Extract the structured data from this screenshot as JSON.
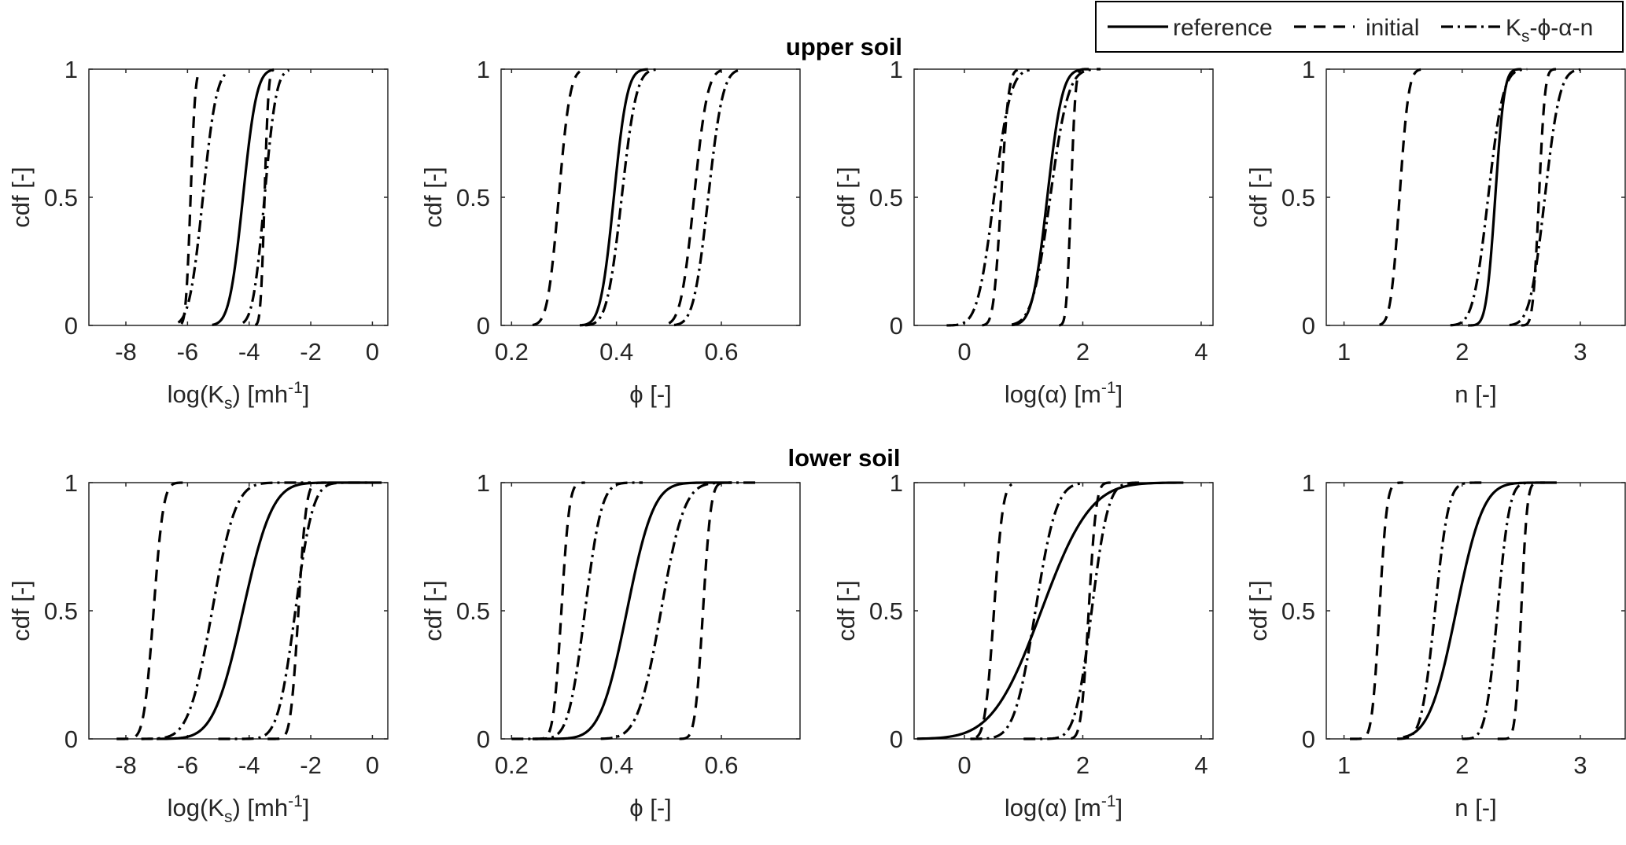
{
  "legend": {
    "entries": [
      {
        "label": "reference",
        "style": "solid"
      },
      {
        "label": "initial",
        "style": "dashed"
      },
      {
        "label_main": "K",
        "label_sub": "s",
        "label_rest": "-ϕ-α-n",
        "style": "dashdot"
      }
    ]
  },
  "rows": [
    {
      "title": "upper soil"
    },
    {
      "title": "lower soil"
    }
  ],
  "chart_data": [
    {
      "type": "line",
      "row": "upper soil",
      "xlabel": {
        "pre": "log(K",
        "sub": "s",
        "post": ") [mh",
        "sup": "-1",
        "end": "]"
      },
      "ylabel": "cdf [-]",
      "xlim": [
        -9.2,
        0.5
      ],
      "ylim": [
        0,
        1
      ],
      "xticks": [
        -8,
        -6,
        -4,
        -2,
        0
      ],
      "xtick_labels": [
        "-8",
        "-6",
        "-4",
        "-2",
        "0"
      ],
      "yticks": [
        0,
        0.5,
        1
      ],
      "ytick_labels": [
        "0",
        "0.5",
        "1"
      ],
      "series": [
        {
          "name": "reference",
          "style": "solid",
          "cdf_mean": -4.2,
          "cdf_sd": 0.35,
          "x_range": [
            -5.2,
            -3.2
          ]
        },
        {
          "name": "initial",
          "style": "dashed",
          "cdf_mean": -5.9,
          "cdf_sd": 0.12,
          "x_range": [
            -6.2,
            -5.6
          ]
        },
        {
          "name": "initial",
          "style": "dashed",
          "cdf_mean": -3.5,
          "cdf_sd": 0.1,
          "x_range": [
            -3.8,
            -3.2
          ]
        },
        {
          "name": "K-phi-alpha-n",
          "style": "dashdot",
          "cdf_mean": -5.5,
          "cdf_sd": 0.35,
          "x_range": [
            -6.3,
            -4.7
          ]
        },
        {
          "name": "K-phi-alpha-n",
          "style": "dashdot",
          "cdf_mean": -3.5,
          "cdf_sd": 0.3,
          "x_range": [
            -4.2,
            -2.7
          ]
        }
      ]
    },
    {
      "type": "line",
      "row": "upper soil",
      "xlabel": {
        "pre": "ϕ [-]"
      },
      "ylabel": "cdf [-]",
      "xlim": [
        0.18,
        0.75
      ],
      "ylim": [
        0,
        1
      ],
      "xticks": [
        0.2,
        0.4,
        0.6
      ],
      "xtick_labels": [
        "0.2",
        "0.4",
        "0.6"
      ],
      "yticks": [
        0,
        0.5,
        1
      ],
      "ytick_labels": [
        "0",
        "0.5",
        "1"
      ],
      "series": [
        {
          "name": "reference",
          "style": "solid",
          "cdf_mean": 0.395,
          "cdf_sd": 0.02,
          "x_range": [
            0.33,
            0.46
          ]
        },
        {
          "name": "initial",
          "style": "dashed",
          "cdf_mean": 0.29,
          "cdf_sd": 0.017,
          "x_range": [
            0.24,
            0.33
          ]
        },
        {
          "name": "initial",
          "style": "dashed",
          "cdf_mean": 0.548,
          "cdf_sd": 0.02,
          "x_range": [
            0.5,
            0.6
          ]
        },
        {
          "name": "K-phi-alpha-n",
          "style": "dashdot",
          "cdf_mean": 0.41,
          "cdf_sd": 0.022,
          "x_range": [
            0.34,
            0.48
          ]
        },
        {
          "name": "K-phi-alpha-n",
          "style": "dashdot",
          "cdf_mean": 0.575,
          "cdf_sd": 0.022,
          "x_range": [
            0.51,
            0.64
          ]
        }
      ]
    },
    {
      "type": "line",
      "row": "upper soil",
      "xlabel": {
        "pre": "log(α) [m",
        "sup": "-1",
        "end": "]"
      },
      "ylabel": "cdf [-]",
      "xlim": [
        -0.85,
        4.2
      ],
      "ylim": [
        0,
        1
      ],
      "xticks": [
        0,
        2,
        4
      ],
      "xtick_labels": [
        "0",
        "2",
        "4"
      ],
      "yticks": [
        0,
        0.5,
        1
      ],
      "ytick_labels": [
        "0",
        "0.5",
        "1"
      ],
      "series": [
        {
          "name": "reference",
          "style": "solid",
          "cdf_mean": 1.4,
          "cdf_sd": 0.2,
          "x_range": [
            0.8,
            2.0
          ]
        },
        {
          "name": "initial",
          "style": "dashed",
          "cdf_mean": 0.62,
          "cdf_sd": 0.1,
          "x_range": [
            0.3,
            0.9
          ]
        },
        {
          "name": "initial",
          "style": "dashed",
          "cdf_mean": 1.8,
          "cdf_sd": 0.06,
          "x_range": [
            1.6,
            2.3
          ]
        },
        {
          "name": "K-phi-alpha-n",
          "style": "dashdot",
          "cdf_mean": 0.5,
          "cdf_sd": 0.22,
          "x_range": [
            -0.3,
            1.1
          ]
        },
        {
          "name": "K-phi-alpha-n",
          "style": "dashdot",
          "cdf_mean": 1.45,
          "cdf_sd": 0.24,
          "x_range": [
            0.8,
            2.2
          ]
        }
      ]
    },
    {
      "type": "line",
      "row": "upper soil",
      "xlabel": {
        "pre": "n [-]"
      },
      "ylabel": "cdf [-]",
      "xlim": [
        0.85,
        3.38
      ],
      "ylim": [
        0,
        1
      ],
      "xticks": [
        1,
        2,
        3
      ],
      "xtick_labels": [
        "1",
        "2",
        "3"
      ],
      "yticks": [
        0,
        0.5,
        1
      ],
      "ytick_labels": [
        "0",
        "0.5",
        "1"
      ],
      "series": [
        {
          "name": "reference",
          "style": "solid",
          "cdf_mean": 2.28,
          "cdf_sd": 0.06,
          "x_range": [
            2.05,
            2.5
          ]
        },
        {
          "name": "initial",
          "style": "dashed",
          "cdf_mean": 1.47,
          "cdf_sd": 0.06,
          "x_range": [
            1.3,
            1.65
          ]
        },
        {
          "name": "initial",
          "style": "dashed",
          "cdf_mean": 2.65,
          "cdf_sd": 0.04,
          "x_range": [
            2.5,
            2.85
          ]
        },
        {
          "name": "K-phi-alpha-n",
          "style": "dashdot",
          "cdf_mean": 2.22,
          "cdf_sd": 0.1,
          "x_range": [
            1.9,
            2.55
          ]
        },
        {
          "name": "K-phi-alpha-n",
          "style": "dashdot",
          "cdf_mean": 2.7,
          "cdf_sd": 0.1,
          "x_range": [
            2.4,
            3.0
          ]
        }
      ]
    },
    {
      "type": "line",
      "row": "lower soil",
      "xlabel": {
        "pre": "log(K",
        "sub": "s",
        "post": ") [mh",
        "sup": "-1",
        "end": "]"
      },
      "ylabel": "cdf [-]",
      "xlim": [
        -9.2,
        0.5
      ],
      "ylim": [
        0,
        1
      ],
      "xticks": [
        -8,
        -6,
        -4,
        -2,
        0
      ],
      "xtick_labels": [
        "-8",
        "-6",
        "-4",
        "-2",
        "0"
      ],
      "yticks": [
        0,
        0.5,
        1
      ],
      "ytick_labels": [
        "0",
        "0.5",
        "1"
      ],
      "series": [
        {
          "name": "reference",
          "style": "solid",
          "cdf_mean": -4.2,
          "cdf_sd": 0.75,
          "x_range": [
            -7.0,
            0.0
          ]
        },
        {
          "name": "initial",
          "style": "dashed",
          "cdf_mean": -7.1,
          "cdf_sd": 0.25,
          "x_range": [
            -8.3,
            -6.0
          ]
        },
        {
          "name": "initial",
          "style": "dashed",
          "cdf_mean": -2.4,
          "cdf_sd": 0.2,
          "x_range": [
            -3.4,
            -1.5
          ]
        },
        {
          "name": "K-phi-alpha-n",
          "style": "dashdot",
          "cdf_mean": -5.2,
          "cdf_sd": 0.6,
          "x_range": [
            -7.5,
            -2.0
          ]
        },
        {
          "name": "K-phi-alpha-n",
          "style": "dashdot",
          "cdf_mean": -2.5,
          "cdf_sd": 0.45,
          "x_range": [
            -5.0,
            0.3
          ]
        }
      ]
    },
    {
      "type": "line",
      "row": "lower soil",
      "xlabel": {
        "pre": "ϕ [-]"
      },
      "ylabel": "cdf [-]",
      "xlim": [
        0.18,
        0.75
      ],
      "ylim": [
        0,
        1
      ],
      "xticks": [
        0.2,
        0.4,
        0.6
      ],
      "xtick_labels": [
        "0.2",
        "0.4",
        "0.6"
      ],
      "yticks": [
        0,
        0.5,
        1
      ],
      "ytick_labels": [
        "0",
        "0.5",
        "1"
      ],
      "series": [
        {
          "name": "reference",
          "style": "solid",
          "cdf_mean": 0.42,
          "cdf_sd": 0.04,
          "x_range": [
            0.24,
            0.62
          ]
        },
        {
          "name": "initial",
          "style": "dashed",
          "cdf_mean": 0.295,
          "cdf_sd": 0.012,
          "x_range": [
            0.24,
            0.34
          ]
        },
        {
          "name": "initial",
          "style": "dashed",
          "cdf_mean": 0.565,
          "cdf_sd": 0.012,
          "x_range": [
            0.52,
            0.62
          ]
        },
        {
          "name": "K-phi-alpha-n",
          "style": "dashdot",
          "cdf_mean": 0.34,
          "cdf_sd": 0.025,
          "x_range": [
            0.2,
            0.45
          ]
        },
        {
          "name": "K-phi-alpha-n",
          "style": "dashdot",
          "cdf_mean": 0.485,
          "cdf_sd": 0.035,
          "x_range": [
            0.37,
            0.67
          ]
        }
      ]
    },
    {
      "type": "line",
      "row": "lower soil",
      "xlabel": {
        "pre": "log(α) [m",
        "sup": "-1",
        "end": "]"
      },
      "ylabel": "cdf [-]",
      "xlim": [
        -0.85,
        4.2
      ],
      "ylim": [
        0,
        1
      ],
      "xticks": [
        0,
        2,
        4
      ],
      "xtick_labels": [
        "0",
        "2",
        "4"
      ],
      "yticks": [
        0,
        0.5,
        1
      ],
      "ytick_labels": [
        "0",
        "0.5",
        "1"
      ],
      "series": [
        {
          "name": "reference",
          "style": "solid",
          "cdf_mean": 1.3,
          "cdf_sd": 0.65,
          "x_range": [
            -0.8,
            3.7
          ]
        },
        {
          "name": "initial",
          "style": "dashed",
          "cdf_mean": 0.5,
          "cdf_sd": 0.12,
          "x_range": [
            0.2,
            0.8
          ]
        },
        {
          "name": "initial",
          "style": "dashed",
          "cdf_mean": 2.1,
          "cdf_sd": 0.1,
          "x_range": [
            1.8,
            2.6
          ]
        },
        {
          "name": "K-phi-alpha-n",
          "style": "dashdot",
          "cdf_mean": 1.2,
          "cdf_sd": 0.28,
          "x_range": [
            0.1,
            2.0
          ]
        },
        {
          "name": "K-phi-alpha-n",
          "style": "dashdot",
          "cdf_mean": 2.15,
          "cdf_sd": 0.22,
          "x_range": [
            1.0,
            3.0
          ]
        }
      ]
    },
    {
      "type": "line",
      "row": "lower soil",
      "xlabel": {
        "pre": "n [-]"
      },
      "ylabel": "cdf [-]",
      "xlim": [
        0.85,
        3.38
      ],
      "ylim": [
        0,
        1
      ],
      "xticks": [
        1,
        2,
        3
      ],
      "xtick_labels": [
        "1",
        "2",
        "3"
      ],
      "yticks": [
        0,
        0.5,
        1
      ],
      "ytick_labels": [
        "0",
        "0.5",
        "1"
      ],
      "series": [
        {
          "name": "reference",
          "style": "solid",
          "cdf_mean": 1.95,
          "cdf_sd": 0.18,
          "x_range": [
            1.5,
            2.8
          ]
        },
        {
          "name": "initial",
          "style": "dashed",
          "cdf_mean": 1.3,
          "cdf_sd": 0.05,
          "x_range": [
            1.05,
            1.5
          ]
        },
        {
          "name": "initial",
          "style": "dashed",
          "cdf_mean": 2.5,
          "cdf_sd": 0.04,
          "x_range": [
            2.3,
            2.7
          ]
        },
        {
          "name": "K-phi-alpha-n",
          "style": "dashdot",
          "cdf_mean": 1.77,
          "cdf_sd": 0.09,
          "x_range": [
            1.45,
            2.2
          ]
        },
        {
          "name": "K-phi-alpha-n",
          "style": "dashdot",
          "cdf_mean": 2.3,
          "cdf_sd": 0.08,
          "x_range": [
            2.0,
            2.6
          ]
        }
      ]
    }
  ]
}
